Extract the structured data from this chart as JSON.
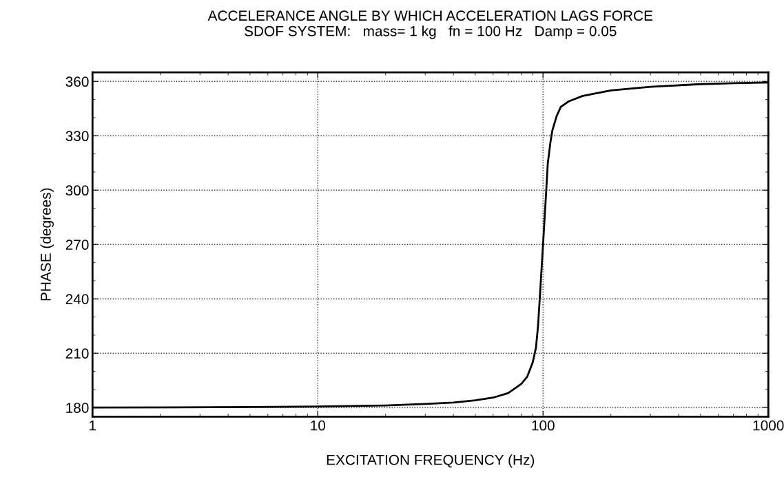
{
  "chart_data": {
    "type": "line",
    "title": "ACCELERANCE ANGLE BY WHICH ACCELERATION LAGS FORCE\nSDOF SYSTEM:   mass= 1 kg   fn = 100 Hz   Damp = 0.05",
    "xlabel": "EXCITATION FREQUENCY (Hz)",
    "ylabel": "PHASE (degrees)",
    "log": "x",
    "xlim": [
      1,
      1000
    ],
    "xticks": [
      1,
      10,
      100,
      1000
    ],
    "ylim": [
      175,
      365
    ],
    "yticks": [
      180,
      210,
      240,
      270,
      300,
      330,
      360
    ],
    "grid": true,
    "marker": "none",
    "line_style": "solid",
    "series": [
      {
        "color": "#000000",
        "x": [
          1,
          5,
          10,
          20,
          30,
          40,
          50,
          60,
          70,
          80,
          85,
          90,
          93,
          95,
          97,
          100,
          103,
          105,
          108,
          110,
          115,
          120,
          130,
          150,
          200,
          300,
          500,
          700,
          1000
        ],
        "values": [
          180,
          180.3,
          180.6,
          181.2,
          182,
          182.8,
          184,
          185.5,
          188,
          193,
          197,
          205,
          213,
          225,
          243,
          270,
          297,
          315,
          327,
          333,
          341,
          346,
          349,
          352,
          355,
          357,
          358.5,
          359,
          359.4
        ]
      }
    ]
  }
}
